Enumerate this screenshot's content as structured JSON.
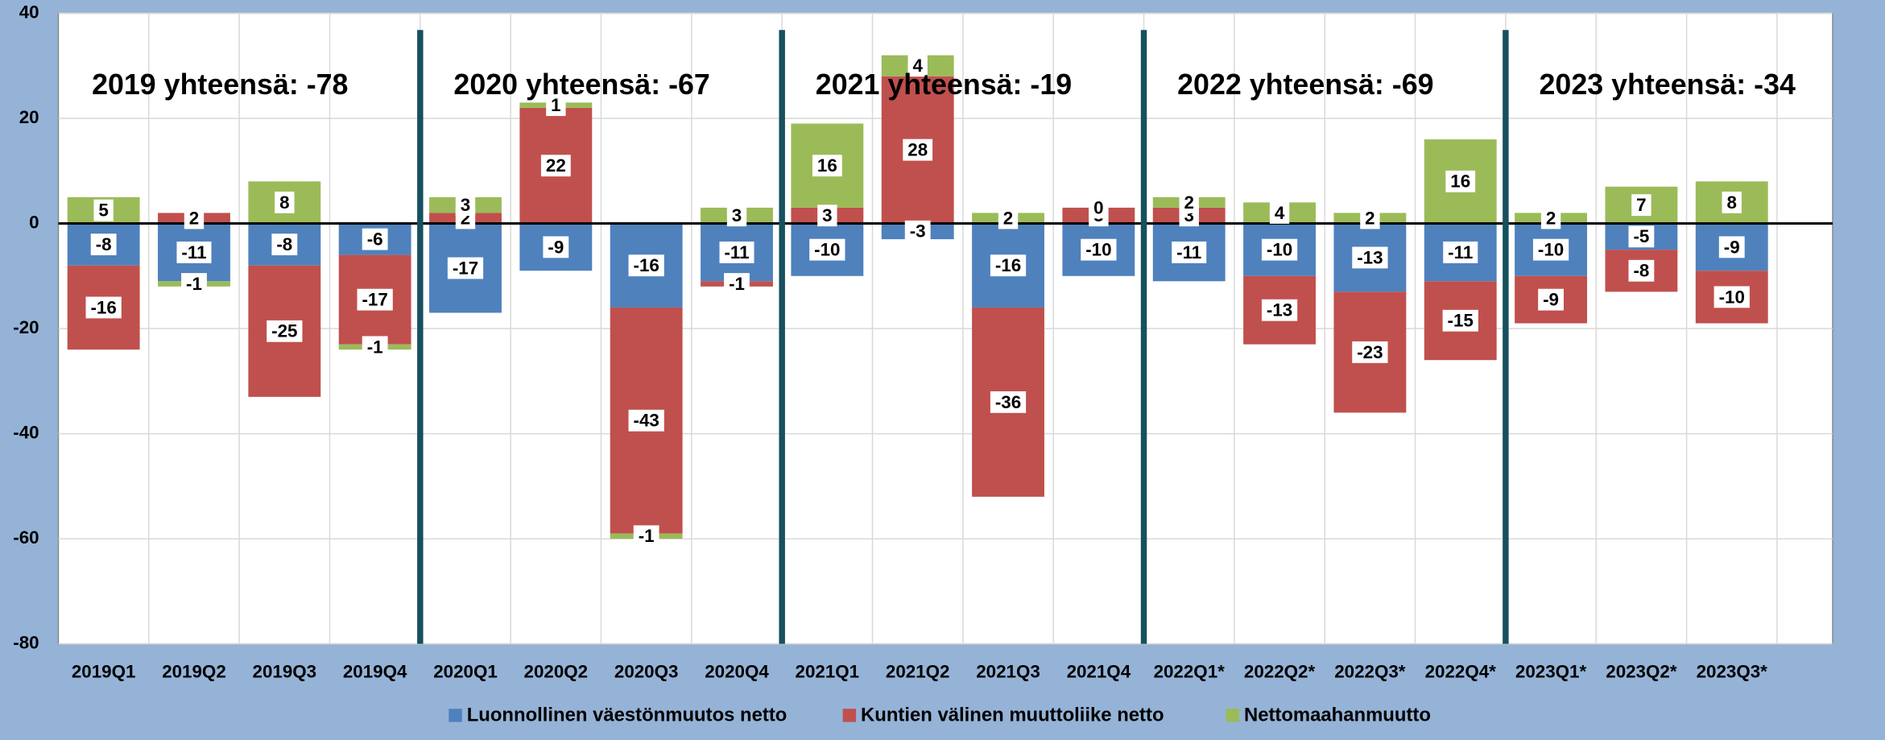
{
  "chart_data": {
    "type": "stacked-bar",
    "categories": [
      "2019Q1",
      "2019Q2",
      "2019Q3",
      "2019Q4",
      "2020Q1",
      "2020Q2",
      "2020Q3",
      "2020Q4",
      "2021Q1",
      "2021Q2",
      "2021Q3",
      "2021Q4",
      "2022Q1*",
      "2022Q2*",
      "2022Q3*",
      "2022Q4*",
      "2023Q1*",
      "2023Q2*",
      "2023Q3*"
    ],
    "series": [
      {
        "name": "Luonnollinen väestönmuutos netto",
        "color": "#4f81bd",
        "values": [
          -8,
          -11,
          -8,
          -6,
          -17,
          -9,
          -16,
          -11,
          -10,
          -3,
          -16,
          -10,
          -11,
          -10,
          -13,
          -11,
          -10,
          -5,
          -9
        ]
      },
      {
        "name": "Kuntien välinen muuttoliike netto",
        "color": "#c0504d",
        "values": [
          -16,
          2,
          -25,
          -17,
          2,
          22,
          -43,
          -1,
          3,
          28,
          -36,
          3,
          3,
          -13,
          -23,
          -15,
          -9,
          -8,
          -10
        ]
      },
      {
        "name": "Nettomaahanmuutto",
        "color": "#9bbb59",
        "values": [
          5,
          -1,
          8,
          -1,
          3,
          1,
          -1,
          3,
          16,
          4,
          2,
          0,
          2,
          4,
          2,
          16,
          2,
          7,
          8
        ]
      }
    ],
    "annotations": [
      "2019 yhteensä: -78",
      "2020 yhteensä: -67",
      "2021 yhteensä: -19",
      "2022 yhteensä: -69",
      "2023 yhteensä: -34"
    ],
    "ylim": [
      -80,
      40
    ],
    "yticks": [
      -80,
      -60,
      -40,
      -20,
      0,
      20,
      40
    ],
    "grid": true,
    "legend": "bottom"
  }
}
